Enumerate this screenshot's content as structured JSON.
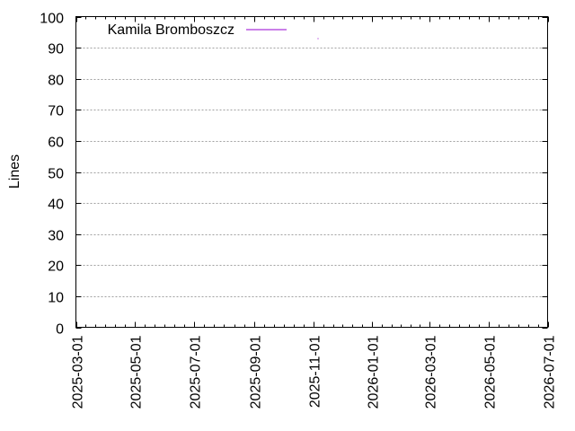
{
  "chart_data": {
    "type": "line",
    "title": "",
    "xlabel": "",
    "ylabel": "Lines",
    "ylim": [
      0,
      100
    ],
    "xlim": [
      "2025-03-01",
      "2026-07-01"
    ],
    "grid": {
      "y": true,
      "x": false,
      "style": "dotted"
    },
    "legend_position": "top-left inside",
    "y_ticks": [
      "0",
      "10",
      "20",
      "30",
      "40",
      "50",
      "60",
      "70",
      "80",
      "90",
      "100"
    ],
    "x_ticks": [
      "2025-03-01",
      "2025-05-01",
      "2025-07-01",
      "2025-09-01",
      "2025-11-01",
      "2026-01-01",
      "2026-03-01",
      "2026-05-01",
      "2026-07-01"
    ],
    "series": [
      {
        "name": "Kamila Bromboszcz",
        "color": "#9400d3",
        "points": [
          {
            "x": "2025-11-06",
            "y": 93
          }
        ]
      }
    ]
  },
  "colors": {
    "series_1": "#9400d3",
    "axis": "#000000",
    "grid": "#a0a0a0"
  }
}
